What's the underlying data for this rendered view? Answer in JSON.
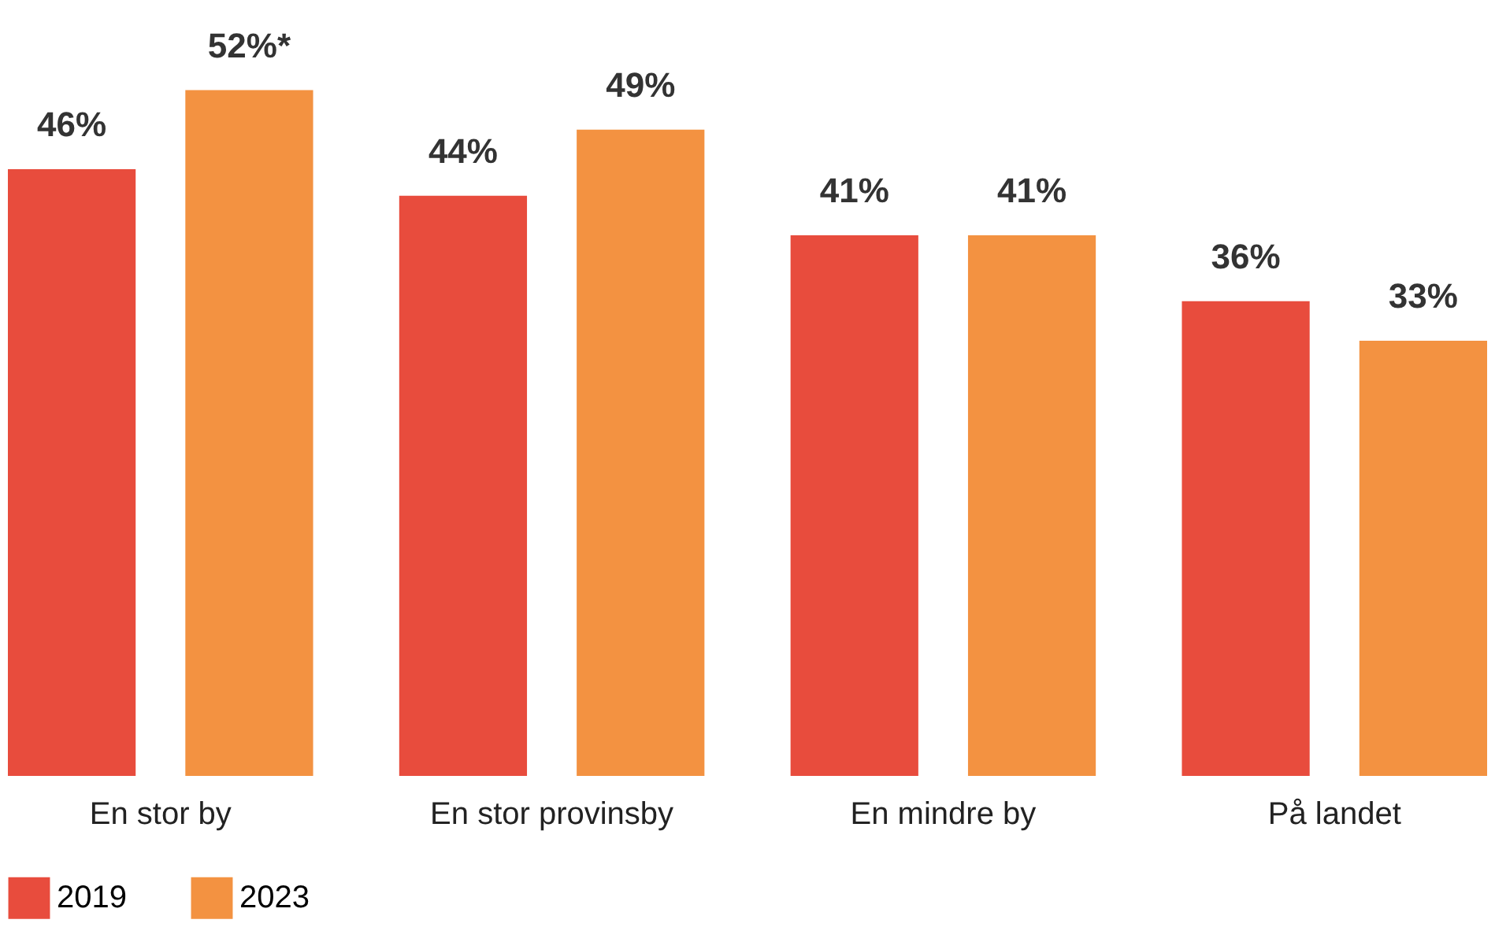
{
  "chart_data": {
    "type": "bar",
    "categories": [
      "En stor by",
      "En stor provinsby",
      "En mindre by",
      "På landet"
    ],
    "series": [
      {
        "name": "2019",
        "color": "#e84c3d",
        "values": [
          46,
          44,
          41,
          36
        ],
        "value_labels": [
          "46%",
          "44%",
          "41%",
          "36%"
        ]
      },
      {
        "name": "2023",
        "color": "#f39241",
        "values": [
          52,
          49,
          41,
          33
        ],
        "value_labels": [
          "52%*",
          "49%",
          "41%",
          "33%"
        ]
      }
    ],
    "legend": "bottom",
    "grid": false
  }
}
